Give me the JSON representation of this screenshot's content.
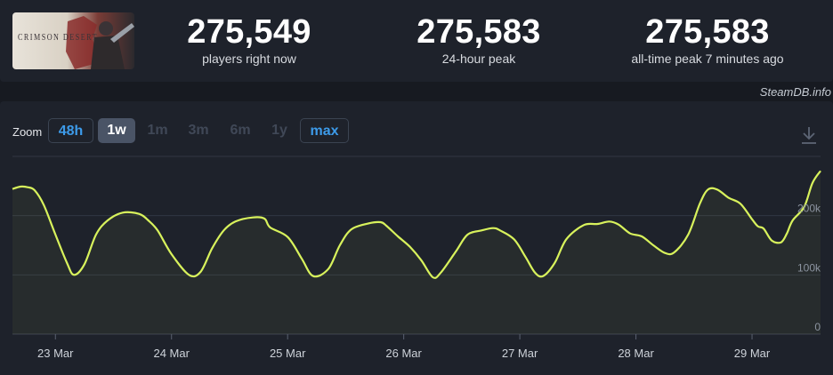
{
  "header": {
    "current_players": "275,549",
    "current_label": "players right now",
    "peak24": "275,583",
    "peak24_label": "24-hour peak",
    "alltime": "275,583",
    "alltime_label": "all-time peak 7 minutes ago",
    "game_logo_text": "CRIMSON DESERT"
  },
  "watermark": "SteamDB.info",
  "zoom": {
    "label": "Zoom",
    "options": [
      {
        "label": "48h",
        "state": "link"
      },
      {
        "label": "1w",
        "state": "active"
      },
      {
        "label": "1m",
        "state": "disabled"
      },
      {
        "label": "3m",
        "state": "disabled"
      },
      {
        "label": "6m",
        "state": "disabled"
      },
      {
        "label": "1y",
        "state": "disabled"
      },
      {
        "label": "max",
        "state": "link"
      }
    ]
  },
  "colors": {
    "line": "#d8f25c",
    "background": "#171a21",
    "panel": "#1e222b",
    "link": "#3d9bea"
  },
  "chart_data": {
    "type": "area",
    "title": "",
    "xlabel": "",
    "ylabel": "",
    "x_ticks": [
      "23 Mar",
      "24 Mar",
      "25 Mar",
      "26 Mar",
      "27 Mar",
      "28 Mar",
      "29 Mar"
    ],
    "y_ticks": [
      "0",
      "100k",
      "200k"
    ],
    "ylim": [
      0,
      300000
    ],
    "x_range_days": [
      22.63,
      29.59
    ],
    "grid": true,
    "series": [
      {
        "x": [
          22.63,
          22.7,
          22.76,
          22.82,
          22.9,
          23.0,
          23.1,
          23.16,
          23.25,
          23.35,
          23.45,
          23.58,
          23.72,
          23.8,
          23.88,
          24.0,
          24.15,
          24.25,
          24.35,
          24.45,
          24.55,
          24.7,
          24.8,
          24.85,
          25.0,
          25.12,
          25.22,
          25.35,
          25.45,
          25.55,
          25.7,
          25.8,
          25.85,
          25.95,
          26.05,
          26.15,
          26.25,
          26.32,
          26.45,
          26.55,
          26.67,
          26.77,
          26.83,
          26.95,
          27.05,
          27.13,
          27.2,
          27.3,
          27.4,
          27.55,
          27.67,
          27.77,
          27.85,
          27.95,
          28.05,
          28.15,
          28.25,
          28.33,
          28.45,
          28.55,
          28.62,
          28.7,
          28.8,
          28.9,
          29.0,
          29.05,
          29.1,
          29.17,
          29.25,
          29.3,
          29.35,
          29.45,
          29.52,
          29.59
        ],
        "values": [
          245000,
          249000,
          248000,
          243000,
          218000,
          168000,
          120000,
          100000,
          118000,
          168000,
          192000,
          205000,
          203000,
          192000,
          175000,
          135000,
          100000,
          105000,
          145000,
          175000,
          190000,
          197000,
          195000,
          180000,
          164000,
          128000,
          98000,
          110000,
          150000,
          177000,
          187000,
          189000,
          183000,
          165000,
          148000,
          125000,
          96000,
          104000,
          140000,
          168000,
          175000,
          179000,
          175000,
          160000,
          130000,
          104000,
          98000,
          120000,
          160000,
          184000,
          186000,
          190000,
          185000,
          170000,
          165000,
          150000,
          137000,
          138000,
          168000,
          220000,
          244000,
          244000,
          230000,
          220000,
          194000,
          182000,
          178000,
          158000,
          155000,
          170000,
          192000,
          215000,
          255000,
          275583
        ]
      }
    ]
  }
}
